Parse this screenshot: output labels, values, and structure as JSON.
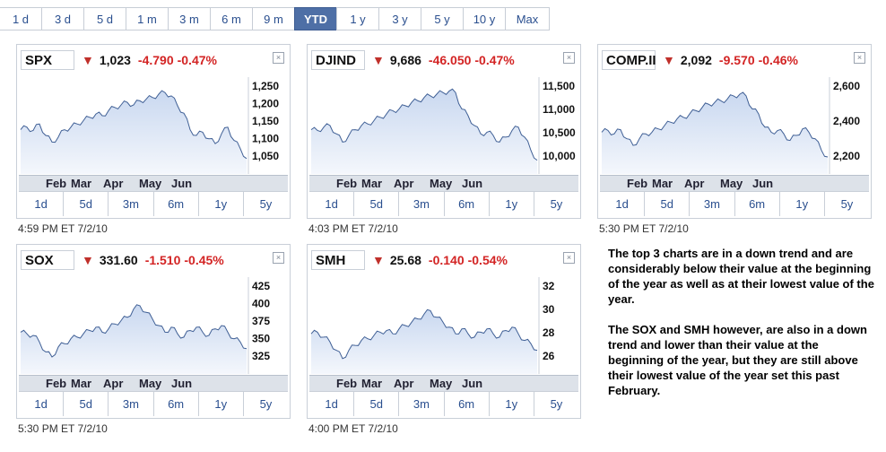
{
  "range_buttons": [
    "1 d",
    "3 d",
    "5 d",
    "1 m",
    "3 m",
    "6 m",
    "9 m",
    "YTD",
    "1 y",
    "3 y",
    "5 y",
    "10 y",
    "Max"
  ],
  "active_range": "YTD",
  "tabs": [
    "1d",
    "5d",
    "3m",
    "6m",
    "1y",
    "5y"
  ],
  "months": [
    "Feb",
    "Mar",
    "Apr",
    "May",
    "Jun"
  ],
  "arrow_icon": "down-arrow-icon",
  "colors": {
    "down": "#d32424",
    "fill": "#c9d8f0",
    "line": "#3f5f95",
    "active": "#4e6fa6"
  },
  "panels": [
    {
      "ticker": "SPX",
      "price": "1,023",
      "change": "-4.790",
      "pct": "-0.47%",
      "timestamp": "4:59 PM ET 7/2/10",
      "axis": [
        "1,250",
        "1,200",
        "1,150",
        "1,100",
        "1,050"
      ]
    },
    {
      "ticker": "DJIND",
      "price": "9,686",
      "change": "-46.050",
      "pct": "-0.47%",
      "timestamp": "4:03 PM ET 7/2/10",
      "axis": [
        "11,500",
        "11,000",
        "10,500",
        "10,000"
      ]
    },
    {
      "ticker": "COMP.II",
      "price": "2,092",
      "change": "-9.570",
      "pct": "-0.46%",
      "timestamp": "5:30 PM ET 7/2/10",
      "axis": [
        "2,600",
        "2,400",
        "2,200"
      ]
    },
    {
      "ticker": "SOX",
      "price": "331.60",
      "change": "-1.510",
      "pct": "-0.45%",
      "timestamp": "5:30 PM ET 7/2/10",
      "axis": [
        "425",
        "400",
        "375",
        "350",
        "325"
      ]
    },
    {
      "ticker": "SMH",
      "price": "25.68",
      "change": "-0.140",
      "pct": "-0.54%",
      "timestamp": "4:00 PM ET 7/2/10",
      "axis": [
        "32",
        "30",
        "28",
        "26"
      ]
    }
  ],
  "note": {
    "p1": "The top 3 charts are in a down trend and are considerably below their value at the beginning of the year as well as at their lowest value of the year.",
    "p2": "The SOX and SMH however, are also in a down trend and lower than their value at the beginning of the year, but they are still above their lowest value of the year set this past February."
  }
}
